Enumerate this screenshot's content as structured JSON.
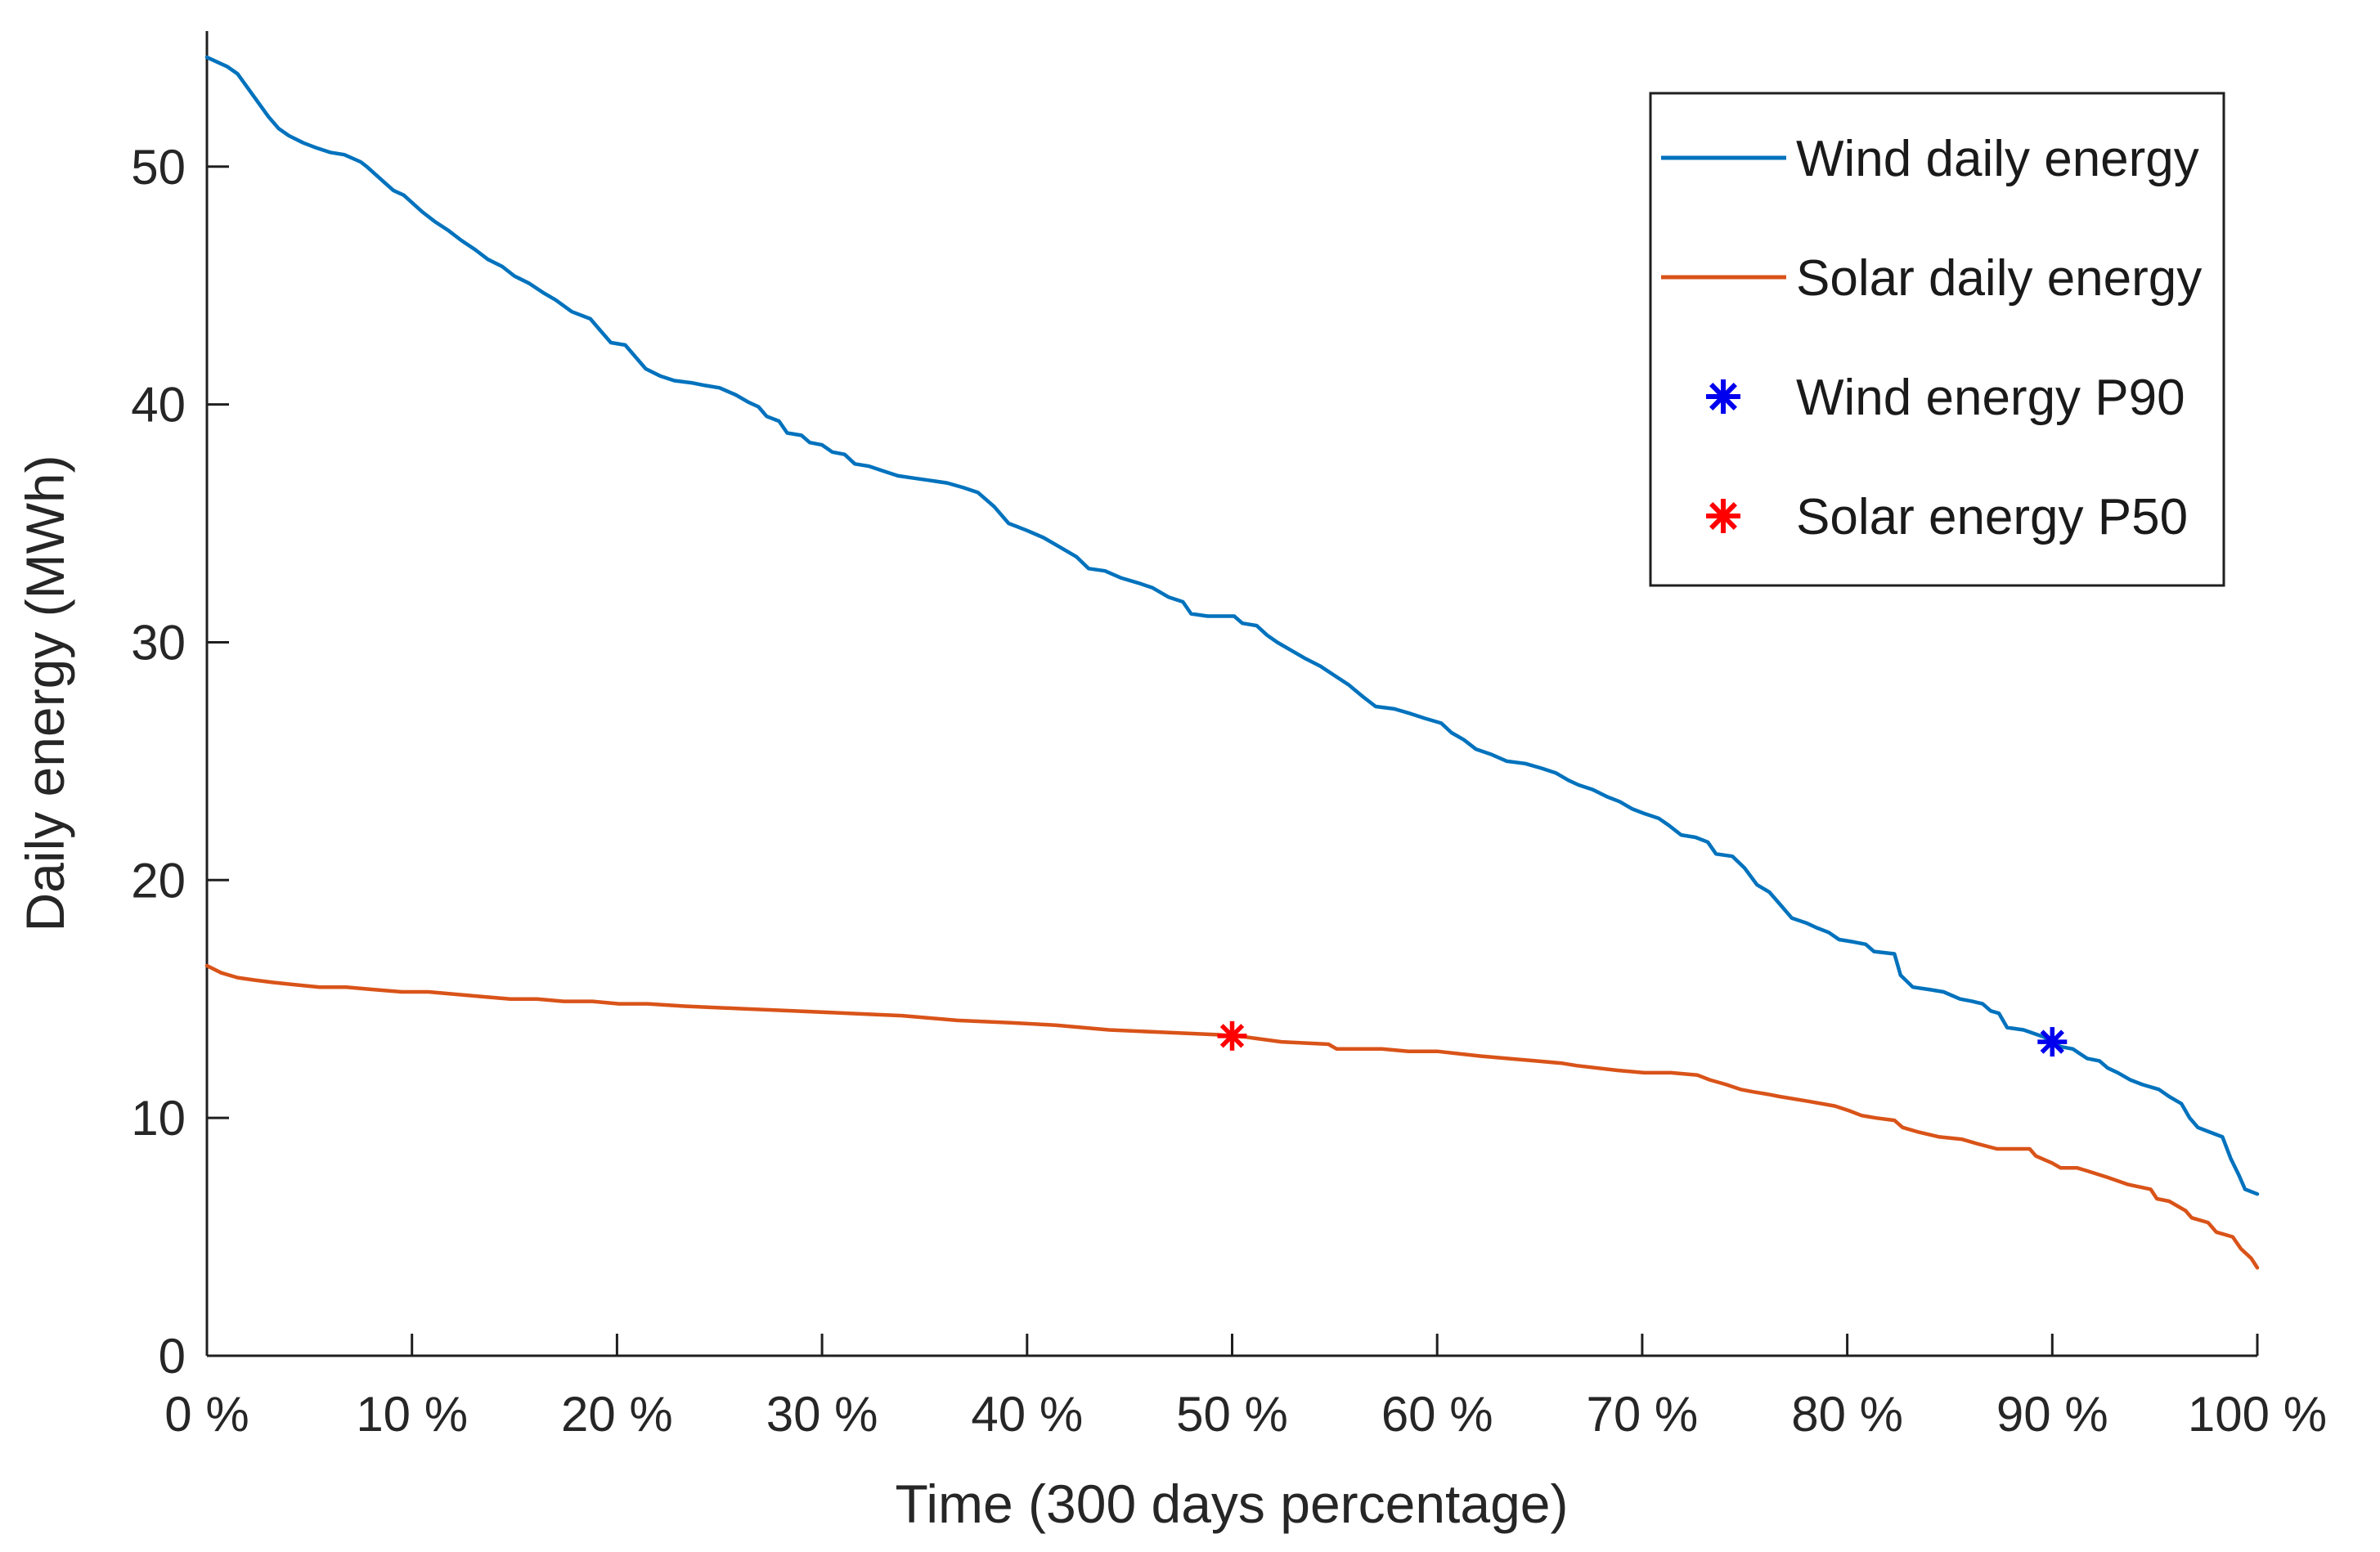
{
  "figure": {
    "background": "#ffffff",
    "axis_color": "#1f1f1f",
    "tick_label_color": "#262626"
  },
  "chart_data": {
    "type": "line",
    "title": "",
    "xlabel": "Time (300 days percentage)",
    "ylabel": "Daily energy (MWh)",
    "xlim": [
      0,
      100
    ],
    "ylim": [
      0,
      55.7
    ],
    "grid": false,
    "legend_position": "top-right",
    "xticks": [
      0,
      10,
      20,
      30,
      40,
      50,
      60,
      70,
      80,
      90,
      100
    ],
    "xtick_labels": [
      "0 %",
      "10 %",
      "20 %",
      "30 %",
      "40 %",
      "50 %",
      "60 %",
      "70 %",
      "80 %",
      "90 %",
      "100 %"
    ],
    "yticks": [
      0,
      10,
      20,
      30,
      40,
      50
    ],
    "ytick_labels": [
      "0",
      "10",
      "20",
      "30",
      "40",
      "50"
    ],
    "series": [
      {
        "name": "Wind daily energy",
        "color": "#0072BD",
        "line_width": 4.5,
        "points": [
          [
            0,
            54.6
          ],
          [
            0.5,
            54.4
          ],
          [
            1,
            54.2
          ],
          [
            1.5,
            53.9
          ],
          [
            2,
            53.3
          ],
          [
            2.5,
            52.7
          ],
          [
            3,
            52.1
          ],
          [
            3.5,
            51.6
          ],
          [
            4,
            51.3
          ],
          [
            4.7,
            51.0
          ],
          [
            5.3,
            50.8
          ],
          [
            6,
            50.6
          ],
          [
            6.7,
            50.5
          ],
          [
            7.5,
            50.2
          ],
          [
            7.8,
            50.0
          ],
          [
            8.7,
            49.3
          ],
          [
            9.1,
            49.0
          ],
          [
            9.6,
            48.8
          ],
          [
            10.5,
            48.1
          ],
          [
            11.1,
            47.7
          ],
          [
            11.8,
            47.3
          ],
          [
            12.4,
            46.9
          ],
          [
            13.1,
            46.5
          ],
          [
            13.7,
            46.1
          ],
          [
            14.4,
            45.8
          ],
          [
            15,
            45.4
          ],
          [
            15.7,
            45.1
          ],
          [
            16.4,
            44.7
          ],
          [
            17,
            44.4
          ],
          [
            17.8,
            43.9
          ],
          [
            18.7,
            43.6
          ],
          [
            19.2,
            43.1
          ],
          [
            19.7,
            42.6
          ],
          [
            20.4,
            42.5
          ],
          [
            20.9,
            42.0
          ],
          [
            21.4,
            41.5
          ],
          [
            22.1,
            41.2
          ],
          [
            22.8,
            41.0
          ],
          [
            23.7,
            40.9
          ],
          [
            24.3,
            40.8
          ],
          [
            25,
            40.7
          ],
          [
            25.8,
            40.4
          ],
          [
            26.4,
            40.1
          ],
          [
            26.9,
            39.9
          ],
          [
            27.3,
            39.5
          ],
          [
            27.9,
            39.3
          ],
          [
            28.3,
            38.8
          ],
          [
            29,
            38.7
          ],
          [
            29.4,
            38.4
          ],
          [
            30,
            38.3
          ],
          [
            30.5,
            38.0
          ],
          [
            31.1,
            37.9
          ],
          [
            31.6,
            37.5
          ],
          [
            32.3,
            37.4
          ],
          [
            33,
            37.2
          ],
          [
            33.7,
            37.0
          ],
          [
            34.5,
            36.9
          ],
          [
            35.3,
            36.8
          ],
          [
            36.1,
            36.7
          ],
          [
            36.9,
            36.5
          ],
          [
            37.6,
            36.3
          ],
          [
            38.4,
            35.7
          ],
          [
            39.1,
            35.0
          ],
          [
            40,
            34.7
          ],
          [
            40.8,
            34.4
          ],
          [
            41.6,
            34.0
          ],
          [
            42.4,
            33.6
          ],
          [
            43,
            33.1
          ],
          [
            43.8,
            33.0
          ],
          [
            44.6,
            32.7
          ],
          [
            45.4,
            32.5
          ],
          [
            46.1,
            32.3
          ],
          [
            46.9,
            31.9
          ],
          [
            47.6,
            31.7
          ],
          [
            48,
            31.2
          ],
          [
            48.8,
            31.1
          ],
          [
            50.1,
            31.1
          ],
          [
            50.5,
            30.8
          ],
          [
            51.2,
            30.7
          ],
          [
            51.7,
            30.3
          ],
          [
            52.2,
            30.0
          ],
          [
            52.8,
            29.7
          ],
          [
            53.6,
            29.3
          ],
          [
            54.3,
            29.0
          ],
          [
            55,
            28.6
          ],
          [
            55.7,
            28.2
          ],
          [
            56.4,
            27.7
          ],
          [
            57,
            27.3
          ],
          [
            57.9,
            27.2
          ],
          [
            58.7,
            27.0
          ],
          [
            59.4,
            26.8
          ],
          [
            60.2,
            26.6
          ],
          [
            60.7,
            26.2
          ],
          [
            61.3,
            25.9
          ],
          [
            61.9,
            25.5
          ],
          [
            62.6,
            25.3
          ],
          [
            63.4,
            25.0
          ],
          [
            64.3,
            24.9
          ],
          [
            65.1,
            24.7
          ],
          [
            65.8,
            24.5
          ],
          [
            66.4,
            24.2
          ],
          [
            66.9,
            24.0
          ],
          [
            67.6,
            23.8
          ],
          [
            68.3,
            23.5
          ],
          [
            68.9,
            23.3
          ],
          [
            69.5,
            23.0
          ],
          [
            70.1,
            22.8
          ],
          [
            70.8,
            22.6
          ],
          [
            71.3,
            22.3
          ],
          [
            71.9,
            21.9
          ],
          [
            72.6,
            21.8
          ],
          [
            73.2,
            21.6
          ],
          [
            73.6,
            21.1
          ],
          [
            74.4,
            21.0
          ],
          [
            75,
            20.5
          ],
          [
            75.6,
            19.8
          ],
          [
            76.2,
            19.5
          ],
          [
            76.7,
            19.0
          ],
          [
            77.3,
            18.4
          ],
          [
            78,
            18.2
          ],
          [
            78.5,
            18.0
          ],
          [
            79.1,
            17.8
          ],
          [
            79.6,
            17.5
          ],
          [
            80.3,
            17.4
          ],
          [
            80.9,
            17.3
          ],
          [
            81.3,
            17.0
          ],
          [
            82.3,
            16.9
          ],
          [
            82.6,
            16.0
          ],
          [
            83.2,
            15.5
          ],
          [
            84,
            15.4
          ],
          [
            84.7,
            15.3
          ],
          [
            85.5,
            15.0
          ],
          [
            86.1,
            14.9
          ],
          [
            86.6,
            14.8
          ],
          [
            87,
            14.5
          ],
          [
            87.4,
            14.4
          ],
          [
            87.8,
            13.8
          ],
          [
            88.6,
            13.7
          ],
          [
            89.6,
            13.4
          ],
          [
            90.4,
            13.0
          ],
          [
            91,
            12.9
          ],
          [
            91.7,
            12.5
          ],
          [
            92.3,
            12.4
          ],
          [
            92.7,
            12.1
          ],
          [
            93.2,
            11.9
          ],
          [
            93.8,
            11.6
          ],
          [
            94.4,
            11.4
          ],
          [
            95.2,
            11.2
          ],
          [
            95.7,
            10.9
          ],
          [
            96.3,
            10.6
          ],
          [
            96.7,
            10.0
          ],
          [
            97.1,
            9.6
          ],
          [
            97.7,
            9.4
          ],
          [
            98.3,
            9.2
          ],
          [
            98.7,
            8.3
          ],
          [
            99.1,
            7.6
          ],
          [
            99.4,
            7.0
          ],
          [
            100,
            6.8
          ]
        ]
      },
      {
        "name": "Solar daily energy",
        "color": "#D95319",
        "line_width": 4.5,
        "points": [
          [
            0,
            16.4
          ],
          [
            0.7,
            16.1
          ],
          [
            1.5,
            15.9
          ],
          [
            2.3,
            15.8
          ],
          [
            3.2,
            15.7
          ],
          [
            4.3,
            15.6
          ],
          [
            5.5,
            15.5
          ],
          [
            6.8,
            15.5
          ],
          [
            8.1,
            15.4
          ],
          [
            9.5,
            15.3
          ],
          [
            10.8,
            15.3
          ],
          [
            12.1,
            15.2
          ],
          [
            13.4,
            15.1
          ],
          [
            14.8,
            15.0
          ],
          [
            16.1,
            15.0
          ],
          [
            17.4,
            14.9
          ],
          [
            18.8,
            14.9
          ],
          [
            20.1,
            14.8
          ],
          [
            21.5,
            14.8
          ],
          [
            23.3,
            14.7
          ],
          [
            25.9,
            14.6
          ],
          [
            28.6,
            14.5
          ],
          [
            31.3,
            14.4
          ],
          [
            33.9,
            14.3
          ],
          [
            36.6,
            14.1
          ],
          [
            39.2,
            14.0
          ],
          [
            41.4,
            13.9
          ],
          [
            44,
            13.7
          ],
          [
            46.7,
            13.6
          ],
          [
            49.3,
            13.5
          ],
          [
            50.7,
            13.4
          ],
          [
            52.4,
            13.2
          ],
          [
            54.7,
            13.1
          ],
          [
            55.1,
            12.9
          ],
          [
            57.3,
            12.9
          ],
          [
            58.6,
            12.8
          ],
          [
            60,
            12.8
          ],
          [
            62.1,
            12.6
          ],
          [
            63.4,
            12.5
          ],
          [
            64.8,
            12.4
          ],
          [
            66.1,
            12.3
          ],
          [
            66.8,
            12.2
          ],
          [
            68.8,
            12.0
          ],
          [
            70.1,
            11.9
          ],
          [
            71.4,
            11.9
          ],
          [
            72.7,
            11.8
          ],
          [
            73.3,
            11.6
          ],
          [
            74.1,
            11.4
          ],
          [
            74.8,
            11.2
          ],
          [
            75.4,
            11.1
          ],
          [
            76.1,
            11.0
          ],
          [
            76.7,
            10.9
          ],
          [
            78.1,
            10.7
          ],
          [
            79.4,
            10.5
          ],
          [
            80.1,
            10.3
          ],
          [
            80.7,
            10.1
          ],
          [
            81.4,
            10.0
          ],
          [
            82.3,
            9.9
          ],
          [
            82.7,
            9.6
          ],
          [
            83.5,
            9.4
          ],
          [
            84.5,
            9.2
          ],
          [
            85.6,
            9.1
          ],
          [
            86.4,
            8.9
          ],
          [
            87.3,
            8.7
          ],
          [
            88.9,
            8.7
          ],
          [
            89.2,
            8.4
          ],
          [
            90,
            8.1
          ],
          [
            90.4,
            7.9
          ],
          [
            91.2,
            7.9
          ],
          [
            91.6,
            7.8
          ],
          [
            92.7,
            7.5
          ],
          [
            93.7,
            7.2
          ],
          [
            94.8,
            7.0
          ],
          [
            95.1,
            6.6
          ],
          [
            95.7,
            6.5
          ],
          [
            96.5,
            6.1
          ],
          [
            96.8,
            5.8
          ],
          [
            97.6,
            5.6
          ],
          [
            98,
            5.2
          ],
          [
            98.8,
            5.0
          ],
          [
            99.2,
            4.5
          ],
          [
            99.7,
            4.1
          ],
          [
            100,
            3.7
          ]
        ]
      }
    ],
    "markers": [
      {
        "name": "Wind energy P90",
        "marker": "asterisk",
        "color": "#0000EE",
        "x": 90,
        "y": 13.2
      },
      {
        "name": "Solar energy P50",
        "marker": "asterisk",
        "color": "#FF0000",
        "x": 50,
        "y": 13.45
      }
    ]
  },
  "legend": {
    "entries": [
      {
        "label": "Wind daily energy",
        "swatch": "line",
        "color": "#0072BD"
      },
      {
        "label": "Solar daily energy",
        "swatch": "line",
        "color": "#D95319"
      },
      {
        "label": "Wind energy P90",
        "swatch": "asterisk",
        "color": "#0000EE"
      },
      {
        "label": "Solar energy P50",
        "swatch": "asterisk",
        "color": "#FF0000"
      }
    ]
  }
}
